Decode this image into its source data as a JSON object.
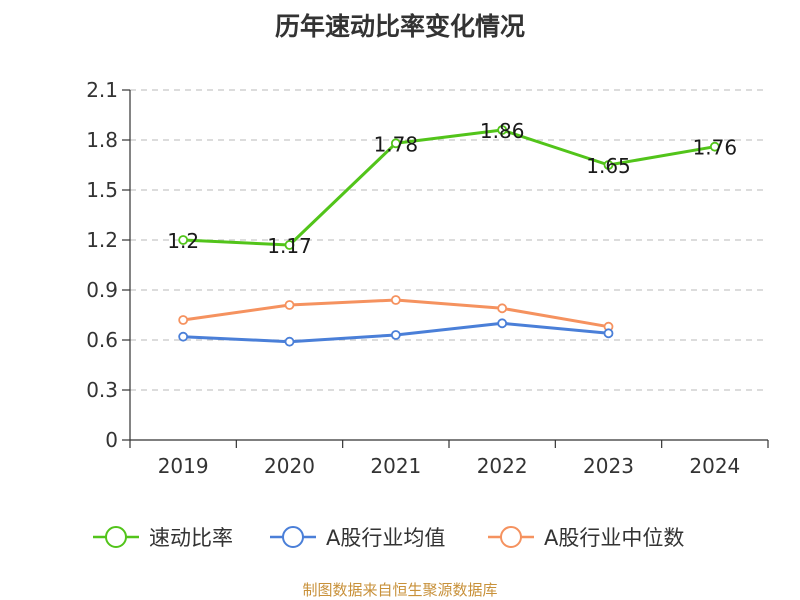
{
  "chart_data": {
    "type": "line",
    "title": "历年速动比率变化情况",
    "categories": [
      "2019",
      "2020",
      "2021",
      "2022",
      "2023",
      "2024"
    ],
    "ylim": [
      0,
      2.1
    ],
    "yticks": [
      0,
      0.3,
      0.6,
      0.9,
      1.2,
      1.5,
      1.8,
      2.1
    ],
    "ytick_labels": [
      "0",
      "0.3",
      "0.6",
      "0.9",
      "1.2",
      "1.5",
      "1.8",
      "2.1"
    ],
    "grid": true,
    "legend_position": "bottom",
    "series": [
      {
        "name": "速动比率",
        "color": "#52c41a",
        "values": [
          1.2,
          1.17,
          1.78,
          1.86,
          1.65,
          1.76
        ],
        "data_labels": [
          "1.2",
          "1.17",
          "1.78",
          "1.86",
          "1.65",
          "1.76"
        ],
        "show_labels": true
      },
      {
        "name": "A股行业均值",
        "color": "#4a7fd8",
        "values": [
          0.62,
          0.59,
          0.63,
          0.7,
          0.64,
          null
        ],
        "show_labels": false
      },
      {
        "name": "A股行业中位数",
        "color": "#f5925f",
        "values": [
          0.72,
          0.81,
          0.84,
          0.79,
          0.68,
          null
        ],
        "show_labels": false
      }
    ]
  },
  "footer": "制图数据来自恒生聚源数据库"
}
